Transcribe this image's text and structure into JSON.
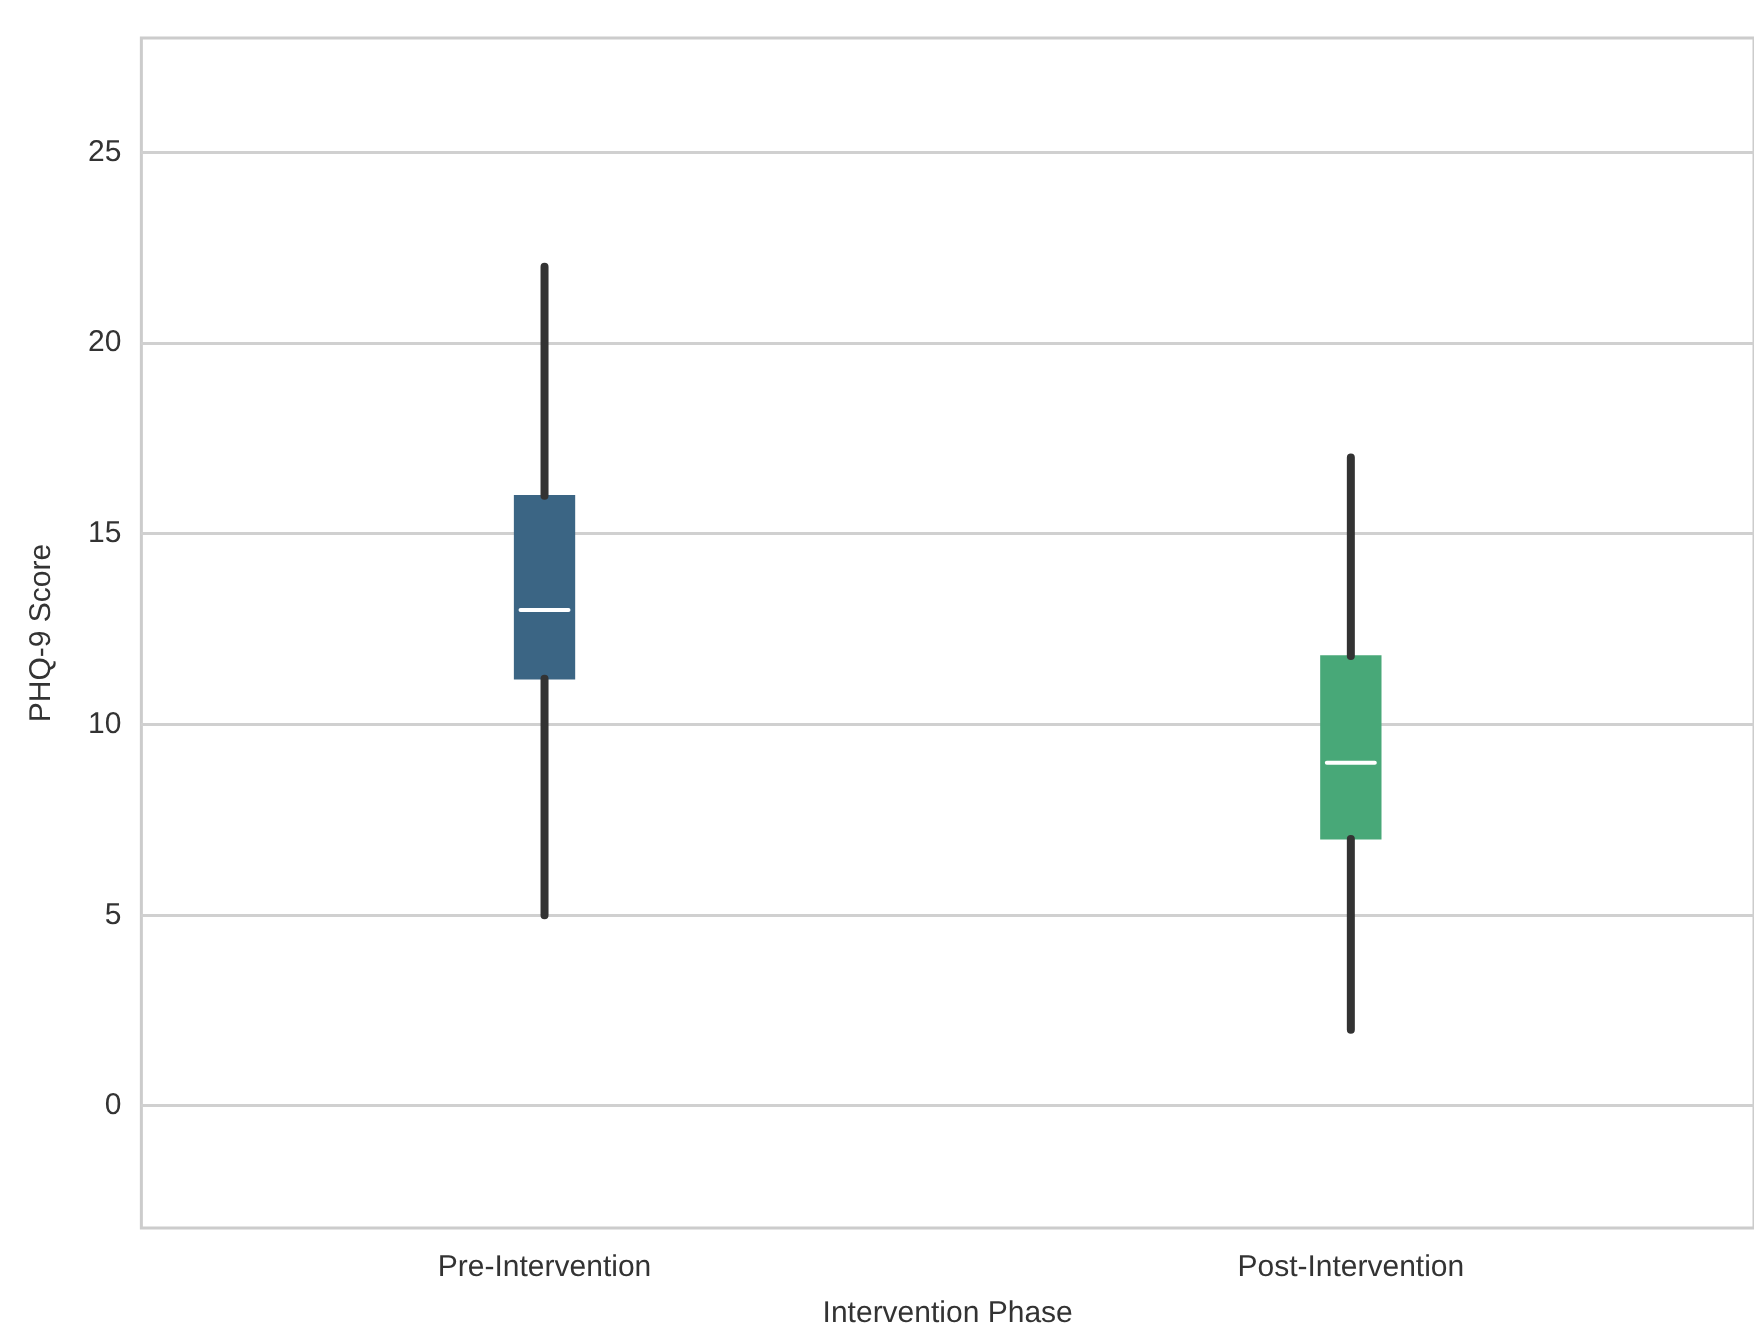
{
  "chart_data": {
    "type": "box",
    "xlabel": "Intervention Phase",
    "ylabel": "PHQ-9 Score",
    "categories": [
      "Pre-Intervention",
      "Post-Intervention"
    ],
    "boxes": [
      {
        "low": 5,
        "q1": 11.2,
        "median": 13,
        "q3": 16,
        "high": 22
      },
      {
        "low": 2,
        "q1": 7,
        "median": 9,
        "q3": 11.8,
        "high": 17
      }
    ],
    "colors": [
      "#3b6584",
      "#48a878"
    ],
    "ylim": [
      -3.2,
      28
    ],
    "yticks": [
      0,
      5,
      10,
      15,
      20,
      25
    ],
    "grid": "y"
  }
}
